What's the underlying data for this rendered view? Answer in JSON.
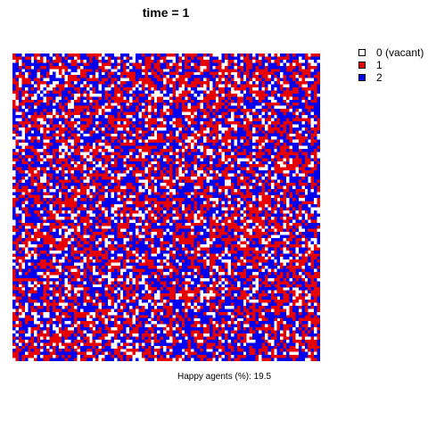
{
  "chart_data": {
    "type": "heatmap",
    "title": "time = 1",
    "caption": {
      "label": "Happy agents (%):",
      "value": 19.5
    },
    "grid": {
      "rows": 100,
      "cols": 100
    },
    "legend": {
      "placement": "top-right",
      "entries": [
        {
          "label": "0 (vacant)",
          "state": 0,
          "color": "#ffffff"
        },
        {
          "label": "1",
          "state": 1,
          "color": "#e60000"
        },
        {
          "label": "2",
          "state": 2,
          "color": "#0000ee"
        }
      ]
    },
    "state_shares": [
      0.18,
      0.41,
      0.41
    ]
  }
}
